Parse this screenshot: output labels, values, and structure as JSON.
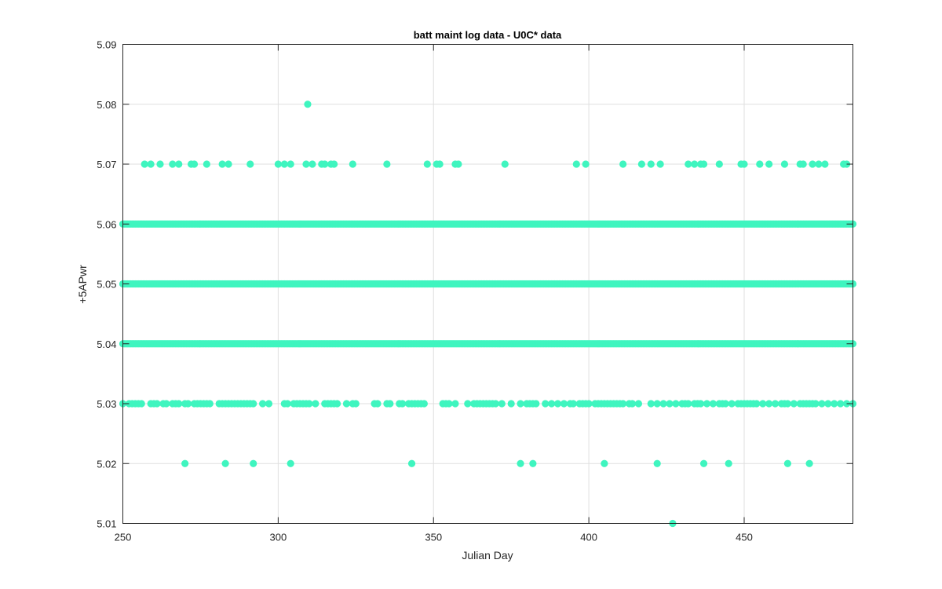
{
  "chart_data": {
    "type": "scatter",
    "title": "batt maint log data - U0C* data",
    "xlabel": "Julian Day",
    "ylabel": "+5APwr",
    "xlim": [
      250,
      485
    ],
    "ylim": [
      5.01,
      5.09
    ],
    "xticks": [
      250,
      300,
      350,
      400,
      450
    ],
    "yticks": [
      5.01,
      5.02,
      5.03,
      5.04,
      5.05,
      5.06,
      5.07,
      5.08,
      5.09
    ],
    "xtick_labels": [
      "250",
      "300",
      "350",
      "400",
      "450"
    ],
    "ytick_labels": [
      "5.01",
      "5.02",
      "5.03",
      "5.04",
      "5.05",
      "5.06",
      "5.07",
      "5.08",
      "5.09"
    ],
    "grid": true,
    "marker_color": "#3ff5bf",
    "series": [
      {
        "points": [
          {
            "y": 5.08,
            "x": [
              309.5
            ]
          },
          {
            "y": 5.07,
            "x": [
              257,
              259,
              262,
              266,
              268,
              272,
              273,
              277,
              282,
              284,
              291,
              300,
              302,
              304,
              309,
              311,
              314,
              315,
              317,
              318,
              324,
              335,
              348,
              351,
              352,
              357,
              358,
              373,
              396,
              399,
              411,
              417,
              420,
              423,
              432,
              434,
              436,
              437,
              442,
              449,
              450,
              455,
              458,
              463,
              468,
              469,
              472,
              474,
              476,
              482,
              483
            ]
          },
          {
            "y": 5.06,
            "range": [
              250,
              485
            ],
            "step": 0.5
          },
          {
            "y": 5.05,
            "range": [
              250,
              485
            ],
            "step": 0.5
          },
          {
            "y": 5.04,
            "range": [
              250,
              485
            ],
            "step": 0.5
          },
          {
            "y": 5.03,
            "x": [
              250,
              252,
              253,
              254,
              255,
              256,
              259,
              260,
              261,
              263,
              264,
              266,
              267,
              268,
              270,
              271,
              273,
              274,
              275,
              276,
              277,
              278,
              281,
              282,
              283,
              284,
              285,
              286,
              287,
              288,
              289,
              290,
              291,
              292,
              295,
              297,
              302,
              303,
              305,
              306,
              307,
              308,
              309,
              310,
              312,
              315,
              316,
              317,
              318,
              319,
              322,
              324,
              325,
              331,
              332,
              335,
              336,
              339,
              340,
              342,
              343,
              344,
              345,
              346,
              347,
              353,
              354,
              355,
              357,
              361,
              363,
              364,
              365,
              366,
              367,
              368,
              369,
              370,
              372,
              375,
              378,
              380,
              381,
              382,
              383,
              386,
              388,
              390,
              392,
              394,
              395,
              397,
              398,
              399,
              400,
              402,
              403,
              404,
              405,
              406,
              407,
              408,
              409,
              410,
              411,
              413,
              414,
              416,
              420,
              422,
              424,
              426,
              428,
              430,
              431,
              432,
              434,
              435,
              436,
              438,
              440,
              442,
              443,
              444,
              446,
              448,
              449,
              450,
              451,
              452,
              453,
              454,
              456,
              458,
              460,
              462,
              463,
              464,
              466,
              468,
              469,
              470,
              471,
              472,
              473,
              475,
              477,
              479,
              481,
              483,
              485
            ]
          },
          {
            "y": 5.02,
            "x": [
              270,
              283,
              292,
              304,
              343,
              378,
              382,
              405,
              422,
              437,
              445,
              464,
              471
            ]
          },
          {
            "y": 5.01,
            "x": [
              427
            ]
          }
        ]
      }
    ]
  }
}
